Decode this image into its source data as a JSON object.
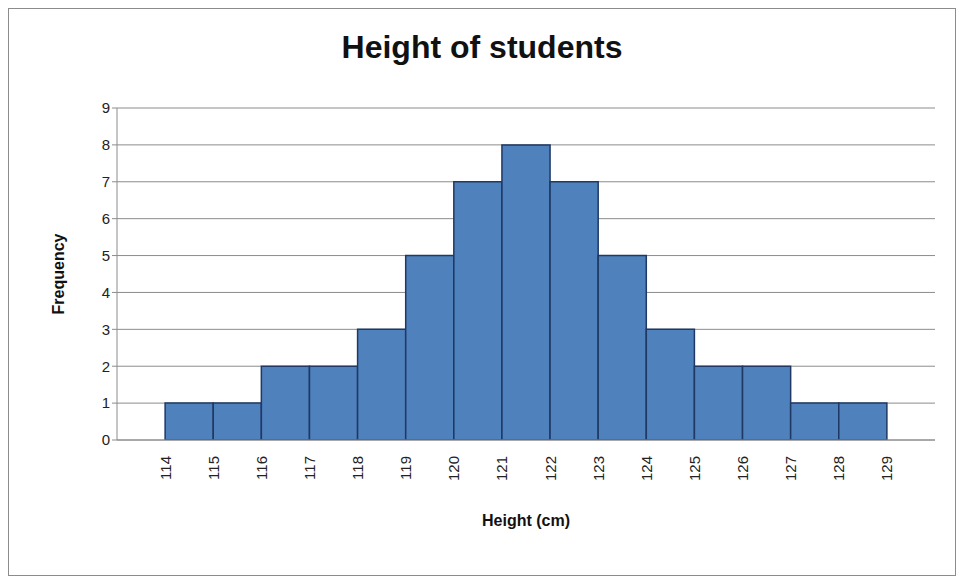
{
  "chart_data": {
    "type": "histogram",
    "title": "Height of students",
    "x_label": "Height (cm)",
    "y_label": "Frequency",
    "bins": [
      114,
      115,
      116,
      117,
      118,
      119,
      120,
      121,
      122,
      123,
      124,
      125,
      126,
      127,
      128,
      129
    ],
    "values": [
      1,
      1,
      2,
      2,
      3,
      5,
      7,
      8,
      7,
      5,
      3,
      2,
      2,
      1,
      1
    ],
    "color": "#4f81bd",
    "xlim": [
      113,
      130
    ],
    "ylim": [
      0,
      9
    ],
    "xticks": [
      114,
      115,
      116,
      117,
      118,
      119,
      120,
      121,
      122,
      123,
      124,
      125,
      126,
      127,
      128,
      129
    ],
    "yticks": [
      0,
      1,
      2,
      3,
      4,
      5,
      6,
      7,
      8,
      9
    ],
    "grid": true
  }
}
